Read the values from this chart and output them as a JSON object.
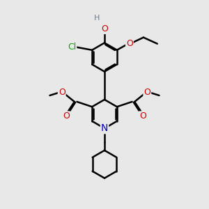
{
  "bg": "#e8e8e8",
  "bond_color": "#000000",
  "lw": 1.8,
  "atom_colors": {
    "O": "#cc0000",
    "N": "#0000cc",
    "Cl": "#00aa00",
    "H": "#708090",
    "C": "#000000"
  },
  "font_size": 9,
  "scale": 1.0
}
